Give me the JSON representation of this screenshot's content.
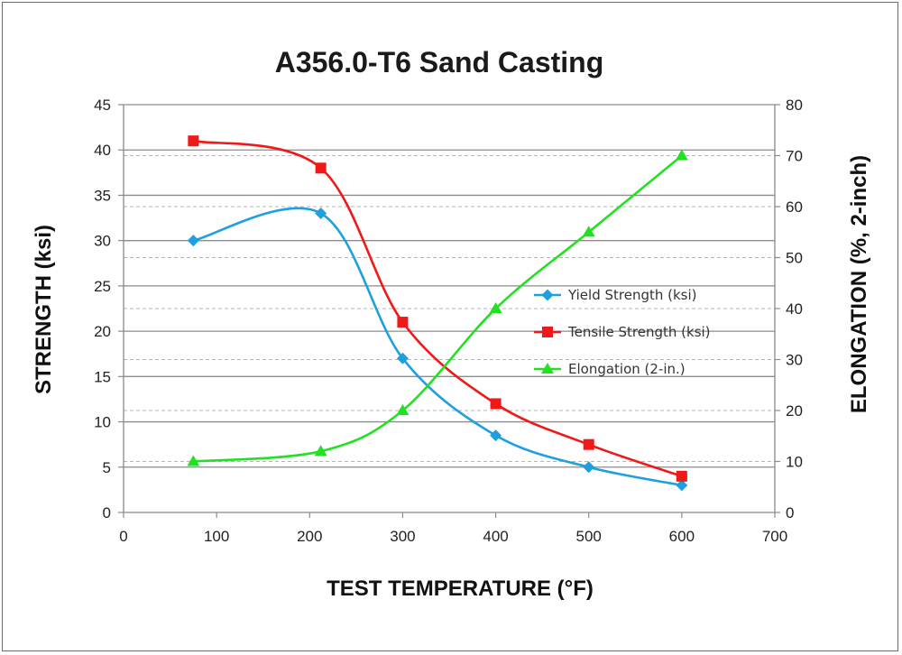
{
  "chart_data": {
    "type": "line",
    "title": "A356.0-T6 Sand Casting",
    "xlabel": "TEST TEMPERATURE (°F)",
    "ylabel": "STRENGTH (ksi)",
    "y2label": "ELONGATION (%, 2-inch)",
    "xlim": [
      0,
      700
    ],
    "ylim": [
      0,
      45
    ],
    "y2lim": [
      0,
      80
    ],
    "xticks": [
      0,
      100,
      200,
      300,
      400,
      500,
      600,
      700
    ],
    "yticks": [
      0,
      5,
      10,
      15,
      20,
      25,
      30,
      35,
      40,
      45
    ],
    "y2ticks": [
      0,
      10,
      20,
      30,
      40,
      50,
      60,
      70,
      80
    ],
    "grid": true,
    "legend_position": "right",
    "series": [
      {
        "name": "Yield Strength (ksi)",
        "axis": "left",
        "color": "#1E9FE0",
        "marker": "diamond",
        "x": [
          75,
          212,
          300,
          400,
          500,
          600
        ],
        "y": [
          30,
          33,
          17,
          8.5,
          5,
          3
        ]
      },
      {
        "name": "Tensile Strength (ksi)",
        "axis": "left",
        "color": "#F01818",
        "marker": "square",
        "x": [
          75,
          212,
          300,
          400,
          500,
          600
        ],
        "y": [
          41,
          38,
          21,
          12,
          7.5,
          4
        ]
      },
      {
        "name": "Elongation (2-in.)",
        "axis": "right",
        "color": "#22E022",
        "marker": "triangle",
        "x": [
          75,
          212,
          300,
          400,
          500,
          600
        ],
        "y": [
          10,
          12,
          20,
          40,
          55,
          70
        ]
      }
    ]
  }
}
